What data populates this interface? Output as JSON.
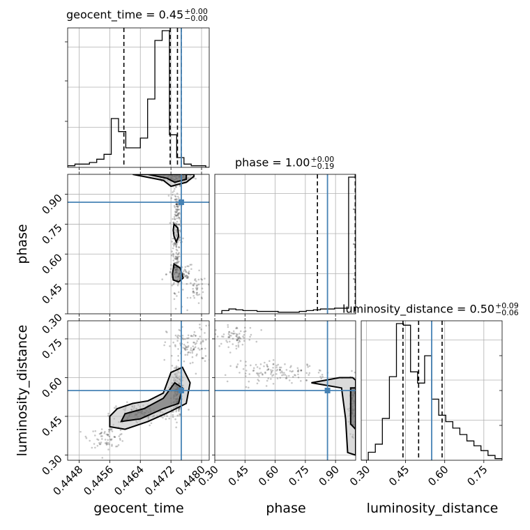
{
  "chart_data": {
    "type": "corner",
    "parameters": [
      "geocent_time",
      "phase",
      "luminosity_distance"
    ],
    "truth_color": "#4682b4",
    "contour_color": "#000000",
    "grid": true,
    "marginals": [
      {
        "param": "geocent_time",
        "title": "geocent_time = 0.45",
        "title_upper": "+0.00",
        "title_lower": "−0.00",
        "range": [
          0.4445,
          0.4482
        ],
        "truth": 0.44747,
        "quantiles": [
          0.44597,
          0.44718,
          0.44737,
          0.44747
        ],
        "bin_edges": [
          0.4445,
          0.44469,
          0.44488,
          0.44507,
          0.44526,
          0.44545,
          0.44564,
          0.44583,
          0.44602,
          0.44621,
          0.4464,
          0.44659,
          0.44678,
          0.44697,
          0.44716,
          0.44735,
          0.44754,
          0.44773,
          0.44792,
          0.44811,
          0.4482
        ],
        "counts": [
          0.01,
          0.02,
          0.02,
          0.03,
          0.05,
          0.08,
          0.3,
          0.22,
          0.12,
          0.12,
          0.18,
          0.42,
          0.78,
          0.84,
          0.2,
          0.06,
          0.02,
          0.01,
          0.01,
          0.0
        ]
      },
      {
        "param": "phase",
        "title": "phase = 1.00",
        "title_upper": "+0.00",
        "title_lower": "−0.19",
        "range": [
          0.3,
          1.0
        ],
        "truth": 0.86,
        "quantiles": [
          0.81,
          0.998
        ],
        "bin_edges": [
          0.3,
          0.335,
          0.37,
          0.405,
          0.44,
          0.475,
          0.51,
          0.545,
          0.58,
          0.615,
          0.65,
          0.685,
          0.72,
          0.755,
          0.79,
          0.825,
          0.86,
          0.895,
          0.93,
          0.965,
          1.0
        ],
        "counts": [
          0.0,
          0.02,
          0.03,
          0.025,
          0.02,
          0.02,
          0.015,
          0.015,
          0.015,
          0.01,
          0.01,
          0.01,
          0.015,
          0.02,
          0.025,
          0.03,
          0.03,
          0.035,
          0.035,
          0.85
        ]
      },
      {
        "param": "luminosity_distance",
        "title": "luminosity_distance = 0.50",
        "title_upper": "+0.09",
        "title_lower": "−0.06",
        "range": [
          0.28,
          0.82
        ],
        "truth": 0.55,
        "quantiles": [
          0.44,
          0.5,
          0.59
        ],
        "bin_edges": [
          0.28,
          0.307,
          0.334,
          0.361,
          0.388,
          0.415,
          0.442,
          0.469,
          0.496,
          0.523,
          0.55,
          0.577,
          0.604,
          0.631,
          0.658,
          0.685,
          0.712,
          0.739,
          0.766,
          0.793,
          0.82
        ],
        "counts": [
          0.0,
          0.05,
          0.1,
          0.26,
          0.52,
          0.85,
          0.84,
          0.55,
          0.48,
          0.65,
          0.38,
          0.28,
          0.24,
          0.2,
          0.16,
          0.12,
          0.09,
          0.06,
          0.03,
          0.01
        ]
      }
    ],
    "truth_point": {
      "geocent_time": 0.44747,
      "phase": 0.86,
      "luminosity_distance": 0.55
    },
    "axes": {
      "geocent_time": {
        "ticks": [
          "0.4448",
          "0.4456",
          "0.4464",
          "0.4472",
          "0.4480"
        ],
        "label": "geocent_time"
      },
      "phase": {
        "ticks": [
          "0.30",
          "0.45",
          "0.60",
          "0.75",
          "0.90"
        ],
        "label": "phase"
      },
      "luminosity_distance": {
        "ticks": [
          "0.30",
          "0.45",
          "0.60",
          "0.75"
        ],
        "label": "luminosity_distance"
      }
    },
    "scatter_clouds": [
      {
        "x_param": "geocent_time",
        "y_param": "phase",
        "blobs": [
          {
            "center": [
              0.44738,
              0.985
            ],
            "spread": [
              0.00022,
              0.012
            ],
            "n": 120
          },
          {
            "center": [
              0.44735,
              0.72
            ],
            "spread": [
              6e-05,
              0.15
            ],
            "n": 220
          },
          {
            "center": [
              0.44745,
              0.5
            ],
            "spread": [
              0.00018,
              0.03
            ],
            "n": 80
          },
          {
            "center": [
              0.4479,
              0.42
            ],
            "spread": [
              0.00012,
              0.04
            ],
            "n": 40
          }
        ]
      },
      {
        "x_param": "geocent_time",
        "y_param": "luminosity_distance",
        "blobs": [
          {
            "center": [
              0.44555,
              0.37
            ],
            "spread": [
              0.00025,
              0.02
            ],
            "n": 70
          },
          {
            "center": [
              0.4464,
              0.46
            ],
            "spread": [
              0.0004,
              0.02
            ],
            "n": 120
          },
          {
            "center": [
              0.44735,
              0.55
            ],
            "spread": [
              7e-05,
              0.05
            ],
            "n": 180
          },
          {
            "center": [
              0.4477,
              0.72
            ],
            "spread": [
              0.0003,
              0.04
            ],
            "n": 110
          }
        ]
      },
      {
        "x_param": "phase",
        "y_param": "luminosity_distance",
        "blobs": [
          {
            "center": [
              0.4,
              0.76
            ],
            "spread": [
              0.05,
              0.02
            ],
            "n": 70
          },
          {
            "center": [
              0.62,
              0.62
            ],
            "spread": [
              0.12,
              0.02
            ],
            "n": 130
          },
          {
            "center": [
              0.985,
              0.49
            ],
            "spread": [
              0.01,
              0.05
            ],
            "n": 120
          }
        ]
      }
    ],
    "contours": [
      {
        "x_param": "geocent_time",
        "y_param": "phase",
        "levels": [
          [
            [
              0.4462,
              1.0
            ],
            [
              0.447,
              0.97
            ],
            [
              0.4472,
              0.94
            ],
            [
              0.4476,
              0.96
            ],
            [
              0.4478,
              0.99
            ],
            [
              0.4478,
              1.0
            ]
          ],
          [
            [
              0.4466,
              1.0
            ],
            [
              0.4471,
              0.98
            ],
            [
              0.4473,
              0.96
            ],
            [
              0.4476,
              0.975
            ],
            [
              0.4476,
              1.0
            ]
          ],
          [
            [
              0.44728,
              0.75
            ],
            [
              0.44738,
              0.73
            ],
            [
              0.4474,
              0.69
            ],
            [
              0.44734,
              0.66
            ],
            [
              0.44728,
              0.69
            ],
            [
              0.44726,
              0.72
            ],
            [
              0.44728,
              0.75
            ]
          ],
          [
            [
              0.44728,
              0.55
            ],
            [
              0.44744,
              0.53
            ],
            [
              0.44752,
              0.48
            ],
            [
              0.4474,
              0.46
            ],
            [
              0.44726,
              0.47
            ],
            [
              0.44724,
              0.5
            ],
            [
              0.44728,
              0.55
            ]
          ]
        ]
      },
      {
        "x_param": "geocent_time",
        "y_param": "luminosity_distance",
        "levels": [
          [
            [
              0.4458,
              0.48
            ],
            [
              0.4462,
              0.5
            ],
            [
              0.4466,
              0.51
            ],
            [
              0.447,
              0.54
            ],
            [
              0.4472,
              0.62
            ],
            [
              0.4475,
              0.64
            ],
            [
              0.4477,
              0.58
            ],
            [
              0.4476,
              0.5
            ],
            [
              0.4472,
              0.47
            ],
            [
              0.4466,
              0.43
            ],
            [
              0.446,
              0.4
            ],
            [
              0.4456,
              0.41
            ],
            [
              0.4456,
              0.45
            ],
            [
              0.4458,
              0.48
            ]
          ],
          [
            [
              0.446,
              0.46
            ],
            [
              0.4465,
              0.48
            ],
            [
              0.447,
              0.52
            ],
            [
              0.4473,
              0.58
            ],
            [
              0.4475,
              0.56
            ],
            [
              0.4474,
              0.5
            ],
            [
              0.447,
              0.48
            ],
            [
              0.4464,
              0.44
            ],
            [
              0.4459,
              0.43
            ],
            [
              0.446,
              0.46
            ]
          ]
        ]
      },
      {
        "x_param": "phase",
        "y_param": "luminosity_distance",
        "levels": [
          [
            [
              0.78,
              0.58
            ],
            [
              0.92,
              0.6
            ],
            [
              0.985,
              0.6
            ],
            [
              1.0,
              0.59
            ],
            [
              1.0,
              0.3
            ],
            [
              0.96,
              0.31
            ],
            [
              0.95,
              0.44
            ],
            [
              0.93,
              0.56
            ],
            [
              0.78,
              0.58
            ]
          ],
          [
            [
              0.975,
              0.56
            ],
            [
              1.0,
              0.56
            ],
            [
              1.0,
              0.4
            ],
            [
              0.975,
              0.42
            ],
            [
              0.975,
              0.56
            ]
          ]
        ]
      }
    ]
  }
}
